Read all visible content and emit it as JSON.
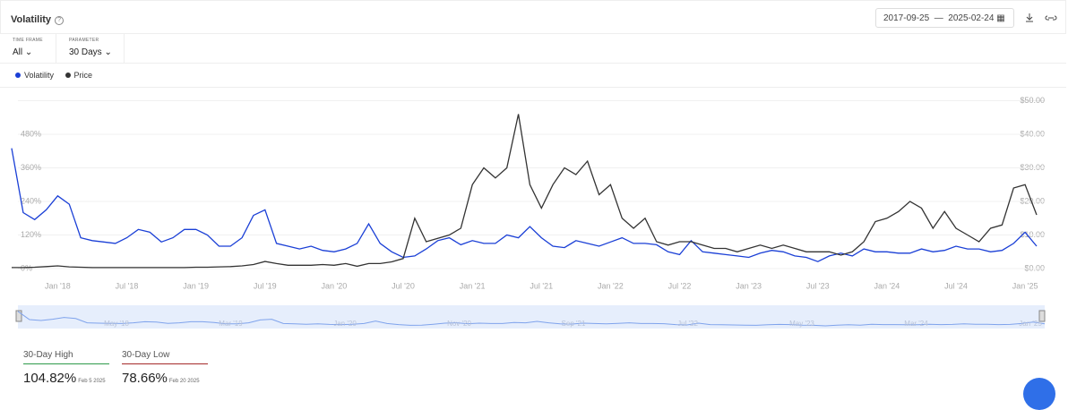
{
  "header": {
    "title": "Volatility",
    "start_date": "2017-09-25",
    "end_date": "2025-02-24"
  },
  "controls": [
    {
      "label": "TIME FRAME",
      "value": "All"
    },
    {
      "label": "PARAMETER",
      "value": "30 Days"
    }
  ],
  "chart_data": {
    "type": "line",
    "categories": [
      null,
      null,
      null,
      null,
      "Jan '18",
      null,
      null,
      null,
      null,
      null,
      "Jul '18",
      null,
      null,
      null,
      null,
      null,
      "Jan '19",
      null,
      null,
      null,
      null,
      null,
      "Jul '19",
      null,
      null,
      null,
      null,
      null,
      "Jan '20",
      null,
      null,
      null,
      null,
      null,
      "Jul '20",
      null,
      null,
      null,
      null,
      null,
      "Jan '21",
      null,
      null,
      null,
      null,
      null,
      "Jul '21",
      null,
      null,
      null,
      null,
      null,
      "Jan '22",
      null,
      null,
      null,
      null,
      null,
      "Jul '22",
      null,
      null,
      null,
      null,
      null,
      "Jan '23",
      null,
      null,
      null,
      null,
      null,
      "Jul '23",
      null,
      null,
      null,
      null,
      null,
      "Jan '24",
      null,
      null,
      null,
      null,
      null,
      "Jul '24",
      null,
      null,
      null,
      null,
      null,
      "Jan '25",
      null
    ],
    "series": [
      {
        "name": "Volatility",
        "color": "#1a3fd6",
        "values": [
          430,
          200,
          175,
          210,
          260,
          230,
          110,
          100,
          95,
          90,
          110,
          140,
          130,
          95,
          110,
          140,
          140,
          120,
          80,
          80,
          110,
          190,
          210,
          90,
          80,
          70,
          80,
          65,
          60,
          70,
          90,
          160,
          90,
          60,
          40,
          45,
          70,
          100,
          110,
          85,
          100,
          90,
          90,
          120,
          110,
          150,
          110,
          80,
          75,
          100,
          90,
          80,
          95,
          110,
          90,
          90,
          85,
          60,
          50,
          100,
          60,
          55,
          50,
          45,
          40,
          55,
          65,
          60,
          45,
          40,
          25,
          45,
          55,
          45,
          70,
          60,
          60,
          55,
          55,
          70,
          60,
          65,
          80,
          70,
          70,
          60,
          65,
          90,
          130,
          80
        ]
      },
      {
        "name": "Price",
        "color": "#333333",
        "axis": "y2",
        "values": [
          0.3,
          0.3,
          0.4,
          0.6,
          0.8,
          0.5,
          0.4,
          0.3,
          0.3,
          0.3,
          0.3,
          0.3,
          0.3,
          0.3,
          0.3,
          0.3,
          0.4,
          0.4,
          0.5,
          0.6,
          0.8,
          1.2,
          2.1,
          1.5,
          1,
          1,
          1,
          1.2,
          1,
          1.5,
          0.7,
          1.5,
          1.5,
          2,
          3,
          15,
          8,
          9,
          10,
          12,
          25,
          30,
          27,
          30,
          46,
          25,
          18,
          25,
          30,
          28,
          32,
          22,
          25,
          15,
          12,
          15,
          8,
          7,
          8,
          8,
          7,
          6,
          6,
          5,
          6,
          7,
          6,
          7,
          6,
          5,
          5,
          5,
          4,
          5,
          8,
          14,
          15,
          17,
          20,
          18,
          12,
          17,
          12,
          10,
          8,
          12,
          13,
          24,
          25,
          16
        ]
      }
    ],
    "ylim": [
      0,
      600
    ],
    "yticks": [
      {
        "value": 0,
        "label": "0%"
      },
      {
        "value": 120,
        "label": "120%"
      },
      {
        "value": 240,
        "label": "240%"
      },
      {
        "value": 360,
        "label": "360%"
      },
      {
        "value": 480,
        "label": "480%"
      }
    ],
    "y2lim": [
      0,
      50
    ],
    "y2ticks": [
      {
        "value": 0,
        "label": "$0.00"
      },
      {
        "value": 10,
        "label": "$10.00"
      },
      {
        "value": 20,
        "label": "$20.00"
      },
      {
        "value": 30,
        "label": "$30.00"
      },
      {
        "value": 40,
        "label": "$40.00"
      },
      {
        "value": 50,
        "label": "$50.00"
      }
    ],
    "grid": true,
    "navigator_labels": [
      "May '18",
      "Mar '19",
      "Jan '20",
      "Nov '20",
      "Sep '21",
      "Jul '22",
      "May '23",
      "Mar '24",
      "Jan '25"
    ]
  },
  "stats": [
    {
      "label": "30-Day High",
      "value": "104.82%",
      "date": "Feb 5 2025"
    },
    {
      "label": "30-Day Low",
      "value": "78.66%",
      "date": "Feb 20 2025"
    }
  ]
}
